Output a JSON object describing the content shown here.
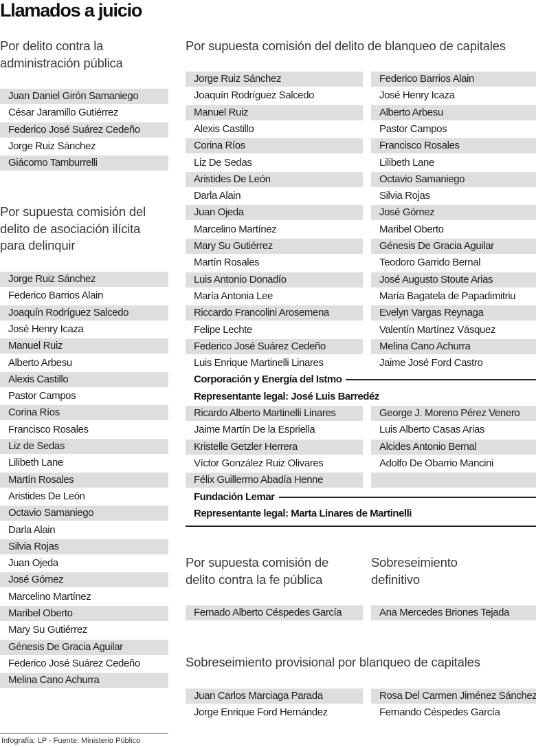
{
  "title": "Llamados a juicio",
  "sections": [
    {
      "heading": "Por delito contra la administración pública",
      "items": [
        "Juan Daniel Girón Samaniego",
        "César Jaramillo Gutiérrez",
        "Federico José Suárez Cedeño",
        "Jorge Ruiz Sánchez",
        "Giácomo Tamburrelli"
      ]
    },
    {
      "heading": "Por supuesta comisión del delito de asociación ilícita para delinquir",
      "items": [
        "Jorge Ruiz Sánchez",
        "Federico Barrios Alain",
        "Joaquín Rodríguez Salcedo",
        "José Henry Icaza",
        "Manuel Ruiz",
        "Alberto Arbesu",
        "Alexis Castillo",
        "Pastor Campos",
        "Corina Ríos",
        "Francisco Rosales",
        "Liz de Sedas",
        "Lilibeth Lane",
        "Martín Rosales",
        "Aristides De León",
        "Octavio Samaniego",
        "Darla Alain",
        "Silvia Rojas",
        "Juan Ojeda",
        "José Gómez",
        "Marcelino Martínez",
        "Maribel Oberto",
        "Mary Su Gutiérrez",
        "Génesis De Gracia Aguilar",
        "Federico José Suárez Cedeño",
        "Melina Cano Achurra"
      ]
    },
    {
      "heading": "Por supuesta comisión del delito de blanqueo de capitales",
      "columns": [
        [
          "Jorge Ruiz Sánchez",
          "Joaquín Rodríguez Salcedo",
          "Manuel Ruiz",
          "Alexis Castillo",
          "Corina Ríos",
          "Liz De Sedas",
          "Aristides De León",
          "Darla Alain",
          "Juan Ojeda",
          "Marcelino Martínez",
          "Mary Su Gutiérrez",
          "Martín Rosales",
          "Luis Antonio Donadío",
          "María Antonia Lee",
          "Riccardo Francolini Arosemena",
          "Felipe Lechte",
          "Federico José Suárez Cedeño",
          "Luis Enrique Martinelli Linares"
        ],
        [
          "Federico Barrios Alain",
          "José Henry Icaza",
          "Alberto Arbesu",
          "Pastor Campos",
          "Francisco Rosales",
          "Lilibeth Lane",
          "Octavio Samaniego",
          "Silvia Rojas",
          "José Gómez",
          "Maribel Oberto",
          "Génesis De Gracia Aguilar",
          "Teodoro Garrido Bernal",
          "José Augusto Stoute Arias",
          "María Bagatela de Papadimitriu",
          "Evelyn Vargas Reynaga",
          "Valentín Martínez Vásquez",
          "Melina Cano Achurra",
          "Jaime José Ford Castro"
        ]
      ],
      "entities": [
        {
          "name": "Corporación y Energía del Istmo",
          "representative": "Representante legal: José Luis Barredéz",
          "columns": [
            [
              "Ricardo Alberto Martinelli Linares",
              "Jaime Martín De la Espriella",
              "Kristelle Getzler Herrera",
              "Víctor González Ruiz Olivares",
              "Félix Guillermo Abadía Henne"
            ],
            [
              "George J. Moreno Pérez Venero",
              "Luis Alberto Casas Arias",
              "Alcides Antonio Bernal",
              "Adolfo De Obarrio Mancini"
            ]
          ]
        },
        {
          "name": "Fundación Lemar",
          "representative": "Representante legal: Marta Linares de Martinelli"
        }
      ]
    },
    {
      "heading": "Por supuesta comisión de delito contra la fe pública",
      "items": [
        "Fernado Alberto Céspedes García"
      ]
    },
    {
      "heading": "Sobreseimiento definitivo",
      "items": [
        "Ana Mercedes Briones Tejada"
      ]
    },
    {
      "heading": "Sobreseimiento provisional por blanqueo de capitales",
      "columns": [
        [
          "Juan Carlos Marciaga Parada",
          "Jorge Enrique Ford Hernández"
        ],
        [
          "Rosa Del Carmen Jiménez Sánchez",
          "Fernando Céspedes García"
        ]
      ]
    }
  ],
  "footer": "Infografía: LP  - Fuente: Ministerio Público"
}
